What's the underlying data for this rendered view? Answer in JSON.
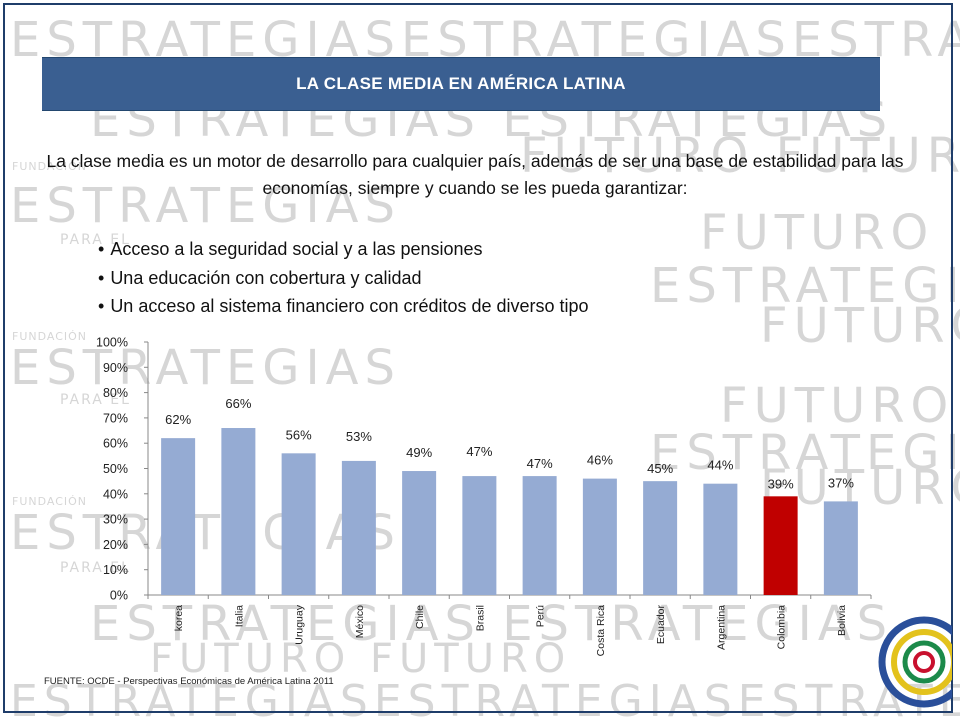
{
  "slide": {
    "title": "LA CLASE MEDIA EN AMÉRICA LATINA",
    "intro": "La clase media es un motor de desarrollo para cualquier país, además de ser una base de estabilidad para las economías, siempre y cuando se les pueda garantizar:",
    "bullets": [
      "Acceso a la seguridad social y a las pensiones",
      "Una educación con cobertura y calidad",
      "Un acceso al sistema financiero con créditos de diverso tipo"
    ],
    "source": "FUENTE: OCDE - Perspectivas Económicas de América Latina 2011"
  },
  "watermark": {
    "word1": "ESTRATEGIAS",
    "word2": "FUTURO",
    "word3": "FUNDACIÓN",
    "word4": "PARA EL"
  },
  "colors": {
    "bar": "#95abd3",
    "highlight": "#c00000",
    "title_bar": "#3a5f91"
  },
  "chart_data": {
    "type": "bar",
    "categories": [
      "korea",
      "Italia",
      "Uruguay",
      "México",
      "Chile",
      "Brasil",
      "Perú",
      "Costa Rica",
      "Ecuador",
      "Argentina",
      "Colombia",
      "Bolivia"
    ],
    "values": [
      62,
      66,
      56,
      53,
      49,
      47,
      47,
      46,
      45,
      44,
      39,
      37
    ],
    "value_labels": [
      "62%",
      "66%",
      "56%",
      "53%",
      "49%",
      "47%",
      "47%",
      "46%",
      "45%",
      "44%",
      "39%",
      "37%"
    ],
    "highlight_category": "Colombia",
    "ylim": [
      0,
      100
    ],
    "yticks": [
      "0%",
      "10%",
      "20%",
      "30%",
      "40%",
      "50%",
      "60%",
      "70%",
      "80%",
      "90%",
      "100%"
    ],
    "grid": false,
    "legend": "none"
  }
}
